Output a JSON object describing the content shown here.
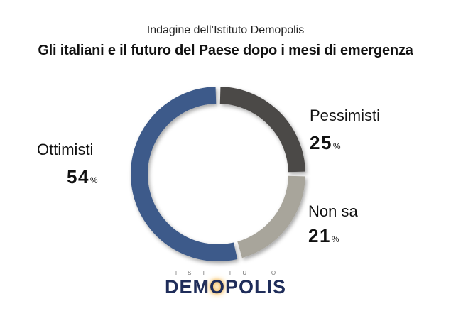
{
  "header": {
    "subtitle": "Indagine dell’Istituto Demopolis",
    "title": "Gli italiani e il futuro del Paese dopo i mesi di emergenza"
  },
  "chart_data": {
    "type": "pie",
    "subtype": "donut",
    "categories": [
      "Pessimisti",
      "Non sa",
      "Ottimisti"
    ],
    "values": [
      25,
      21,
      54
    ],
    "unit": "%",
    "colors": [
      "#4b4846",
      "#a8a59b",
      "#3c5a8a"
    ],
    "labels": {
      "pessimisti": {
        "name": "Pessimisti",
        "value": "25",
        "unit": "%"
      },
      "non_sa": {
        "name": "Non sa",
        "value": "21",
        "unit": "%"
      },
      "ottimisti": {
        "name": "Ottimisti",
        "value": "54",
        "unit": "%"
      }
    }
  },
  "logo": {
    "top": "ISTITUTO",
    "main_pre": "DEM",
    "main_o": "O",
    "main_post": "POLIS"
  }
}
